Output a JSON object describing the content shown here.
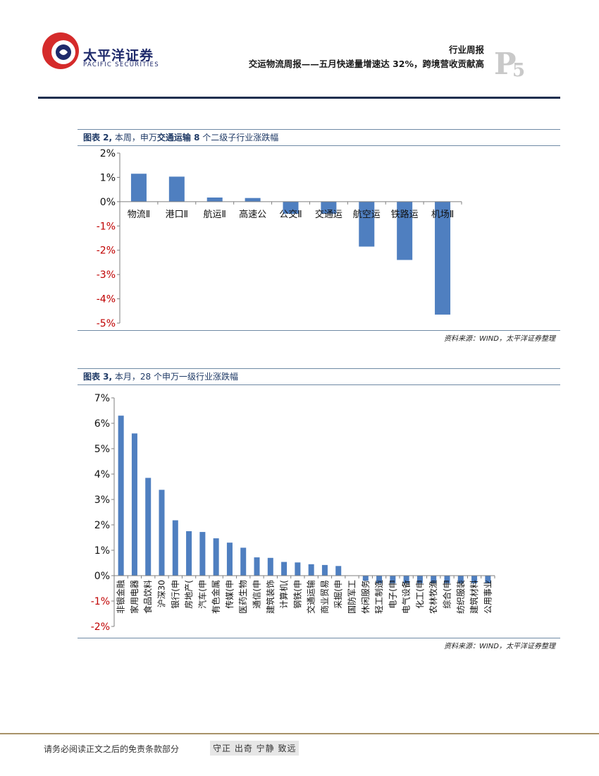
{
  "header": {
    "brand_cn": "太平洋证券",
    "brand_en": "PACIFIC SECURITIES",
    "report_type": "行业周报",
    "report_title": "交运物流周报——五月快递量增速达 32%，跨境营收贡献高",
    "page_letter": "P",
    "page_number": "5",
    "colors": {
      "brand_red": "#d52b2b",
      "brand_navy": "#1f2a6b",
      "rule": "#1f2f4f"
    }
  },
  "figure2": {
    "caption_prefix": "图表 2,",
    "caption_a": " 本周，申万",
    "caption_bold": "交通运输 8",
    "caption_b": " 个二级子行业涨跌幅",
    "source": "资料来源：WIND，太平洋证券整理"
  },
  "figure3": {
    "caption_prefix": "图表 3,",
    "caption_a": " 本月，28 个申万一级行业涨跌幅",
    "source": "资料来源：WIND，太平洋证券整理"
  },
  "chart_data": [
    {
      "type": "bar",
      "title": "本周，申万交通运输 8 个二级子行业涨跌幅",
      "categories": [
        "物流Ⅱ",
        "港口Ⅱ",
        "航运Ⅱ",
        "高速公",
        "公交Ⅱ",
        "交通运",
        "航空运",
        "铁路运",
        "机场Ⅱ"
      ],
      "values": [
        1.15,
        1.03,
        0.17,
        0.15,
        -0.5,
        -0.5,
        -1.85,
        -2.4,
        -4.65
      ],
      "ylim": [
        -5,
        2
      ],
      "yticks": [
        "2%",
        "1%",
        "0%",
        "-1%",
        "-2%",
        "-3%",
        "-4%",
        "-5%"
      ],
      "color": "#4f7fc0",
      "negative_tick_color": "#c00000"
    },
    {
      "type": "bar",
      "title": "本月，28 个申万一级行业涨跌幅",
      "categories": [
        "非银金融",
        "家用电器",
        "食品饮料",
        "沪深30",
        "银行(申",
        "房地产(",
        "汽车(申",
        "有色金属",
        "传媒(申",
        "医药生物",
        "通信(申",
        "建筑装饰",
        "计算机(",
        "钢铁(申",
        "交通运输",
        "商业贸易",
        "采掘(申",
        "国防军工",
        "休闲服务",
        "轻工制造",
        "电子(申",
        "电气设备",
        "化工(申",
        "农林牧渔",
        "综合(申",
        "纺织服装",
        "建筑材料",
        "公用事业"
      ],
      "values": [
        6.3,
        5.6,
        3.85,
        3.38,
        2.18,
        1.75,
        1.72,
        1.47,
        1.3,
        1.1,
        0.72,
        0.7,
        0.54,
        0.52,
        0.45,
        0.42,
        0.38,
        0.0,
        -0.2,
        -0.3,
        -0.3,
        -0.3,
        -0.3,
        -0.3,
        -0.3,
        -0.3,
        -0.3,
        -0.3
      ],
      "ylim": [
        -2,
        7
      ],
      "yticks": [
        "7%",
        "6%",
        "5%",
        "4%",
        "3%",
        "2%",
        "1%",
        "0%",
        "-1%",
        "-2%"
      ],
      "color": "#4f7fc0",
      "negative_tick_color": "#c00000"
    }
  ],
  "footer": {
    "note": "请务必阅读正文之后的免责条款部分",
    "slogan": "守正 出奇 宁静 致远"
  }
}
